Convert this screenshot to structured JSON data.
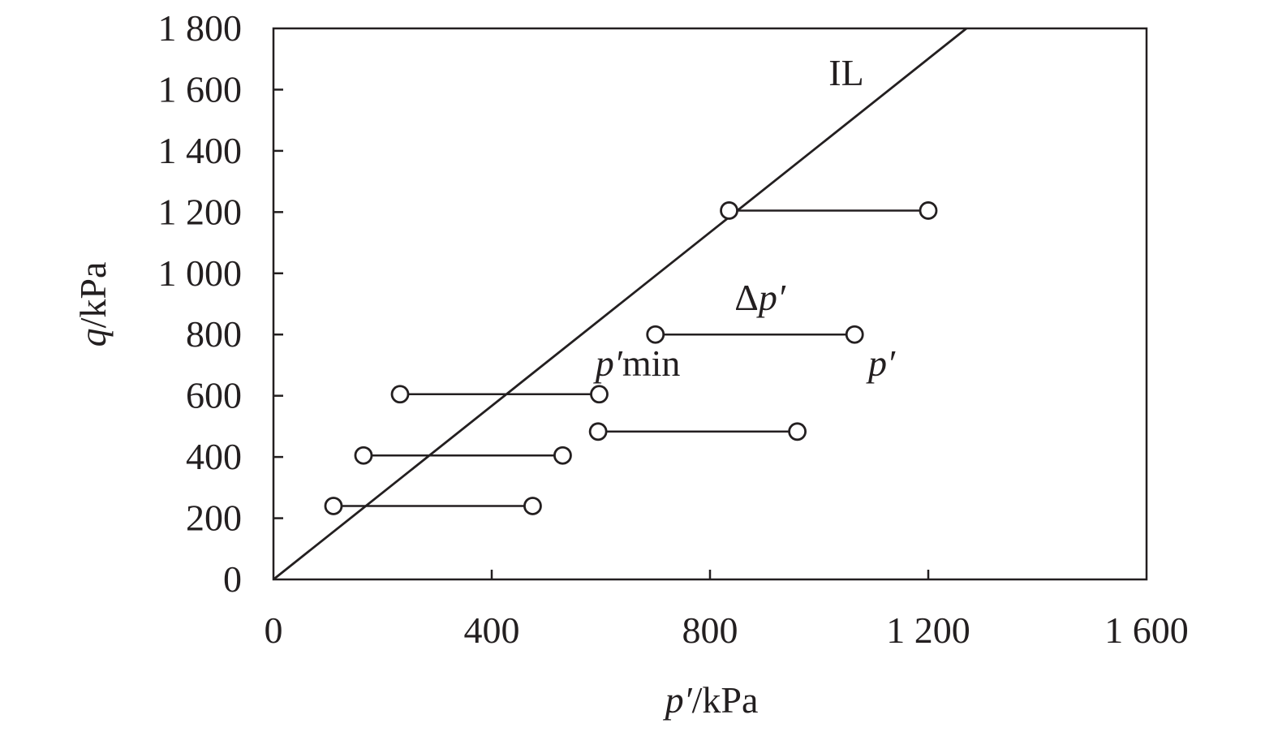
{
  "chart_data": {
    "type": "scatter",
    "title": "",
    "xlabel": {
      "symbol": "p′",
      "unit": "/kPa"
    },
    "ylabel": {
      "symbol": "q",
      "unit": "/kPa"
    },
    "xlim": [
      0,
      1600
    ],
    "ylim": [
      0,
      1800
    ],
    "xticks": [
      0,
      400,
      800,
      1200,
      1600
    ],
    "yticks": [
      0,
      200,
      400,
      600,
      800,
      1000,
      1200,
      1400,
      1600,
      1800
    ],
    "xtick_labels": [
      "0",
      "400",
      "800",
      "1 200",
      "1 600"
    ],
    "ytick_labels": [
      "0",
      "200",
      "400",
      "600",
      "800",
      "1 000",
      "1 200",
      "1 400",
      "1 600",
      "1 800"
    ],
    "grid": false,
    "legend": "none",
    "il_line": {
      "label": "IL",
      "points": [
        [
          0,
          0
        ],
        [
          1270,
          1800
        ]
      ]
    },
    "segments": [
      {
        "q": 240,
        "p_min": 110,
        "p": 475
      },
      {
        "q": 405,
        "p_min": 165,
        "p": 530
      },
      {
        "q": 605,
        "p_min": 232,
        "p": 597
      },
      {
        "q": 483,
        "p_min": 595,
        "p": 960
      },
      {
        "q": 800,
        "p_min": 700,
        "p": 1065
      },
      {
        "q": 1205,
        "p_min": 835,
        "p": 1200
      }
    ],
    "annotations": [
      {
        "id": "dp",
        "prefix": "Δ",
        "symbol": "p′",
        "suffix": "",
        "x": 845,
        "y": 880
      },
      {
        "id": "pmin",
        "prefix": "",
        "symbol": "p′",
        "suffix": "min",
        "x": 590,
        "y": 665
      },
      {
        "id": "p",
        "prefix": "",
        "symbol": "p′",
        "suffix": "",
        "x": 1090,
        "y": 665
      }
    ]
  }
}
